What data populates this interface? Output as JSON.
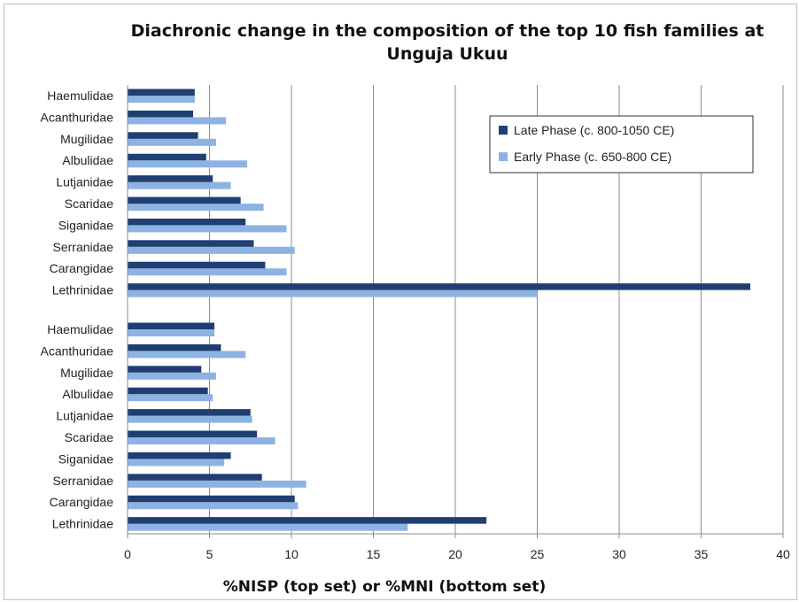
{
  "chart_data": {
    "type": "bar",
    "orientation": "horizontal",
    "title": [
      "Diachronic change in the composition of the  top 10 fish families at",
      "Unguja Ukuu"
    ],
    "xlabel": "%NISP (top set) or %MNI (bottom set)",
    "ylabel": "",
    "xlim": [
      0,
      40
    ],
    "xticks": [
      0,
      5,
      10,
      15,
      20,
      25,
      30,
      35,
      40
    ],
    "grid": "vertical",
    "legend_position": "top-right",
    "series": [
      {
        "name": "Late Phase (c. 800-1050 CE)",
        "color": "#1f3f73"
      },
      {
        "name": "Early Phase (c. 650-800 CE)",
        "color": "#8db3e2"
      }
    ],
    "groups": [
      {
        "set": "top",
        "categories": [
          "Haemulidae",
          "Acanthuridae",
          "Mugilidae",
          "Albulidae",
          "Lutjanidae",
          "Scaridae",
          "Siganidae",
          "Serranidae",
          "Carangidae",
          "Lethrinidae"
        ],
        "late": [
          4.1,
          4.0,
          4.3,
          4.8,
          5.2,
          6.9,
          7.2,
          7.7,
          8.4,
          38.0
        ],
        "early": [
          4.1,
          6.0,
          5.4,
          7.3,
          6.3,
          8.3,
          9.7,
          10.2,
          9.7,
          25.0
        ]
      },
      {
        "set": "bottom",
        "categories": [
          "Haemulidae",
          "Acanthuridae",
          "Mugilidae",
          "Albulidae",
          "Lutjanidae",
          "Scaridae",
          "Siganidae",
          "Serranidae",
          "Carangidae",
          "Lethrinidae"
        ],
        "late": [
          5.3,
          5.7,
          4.5,
          4.9,
          7.5,
          7.9,
          6.3,
          8.2,
          10.2,
          21.9
        ],
        "early": [
          5.3,
          7.2,
          5.4,
          5.2,
          7.6,
          9.0,
          5.9,
          10.9,
          10.4,
          17.1
        ]
      }
    ]
  }
}
